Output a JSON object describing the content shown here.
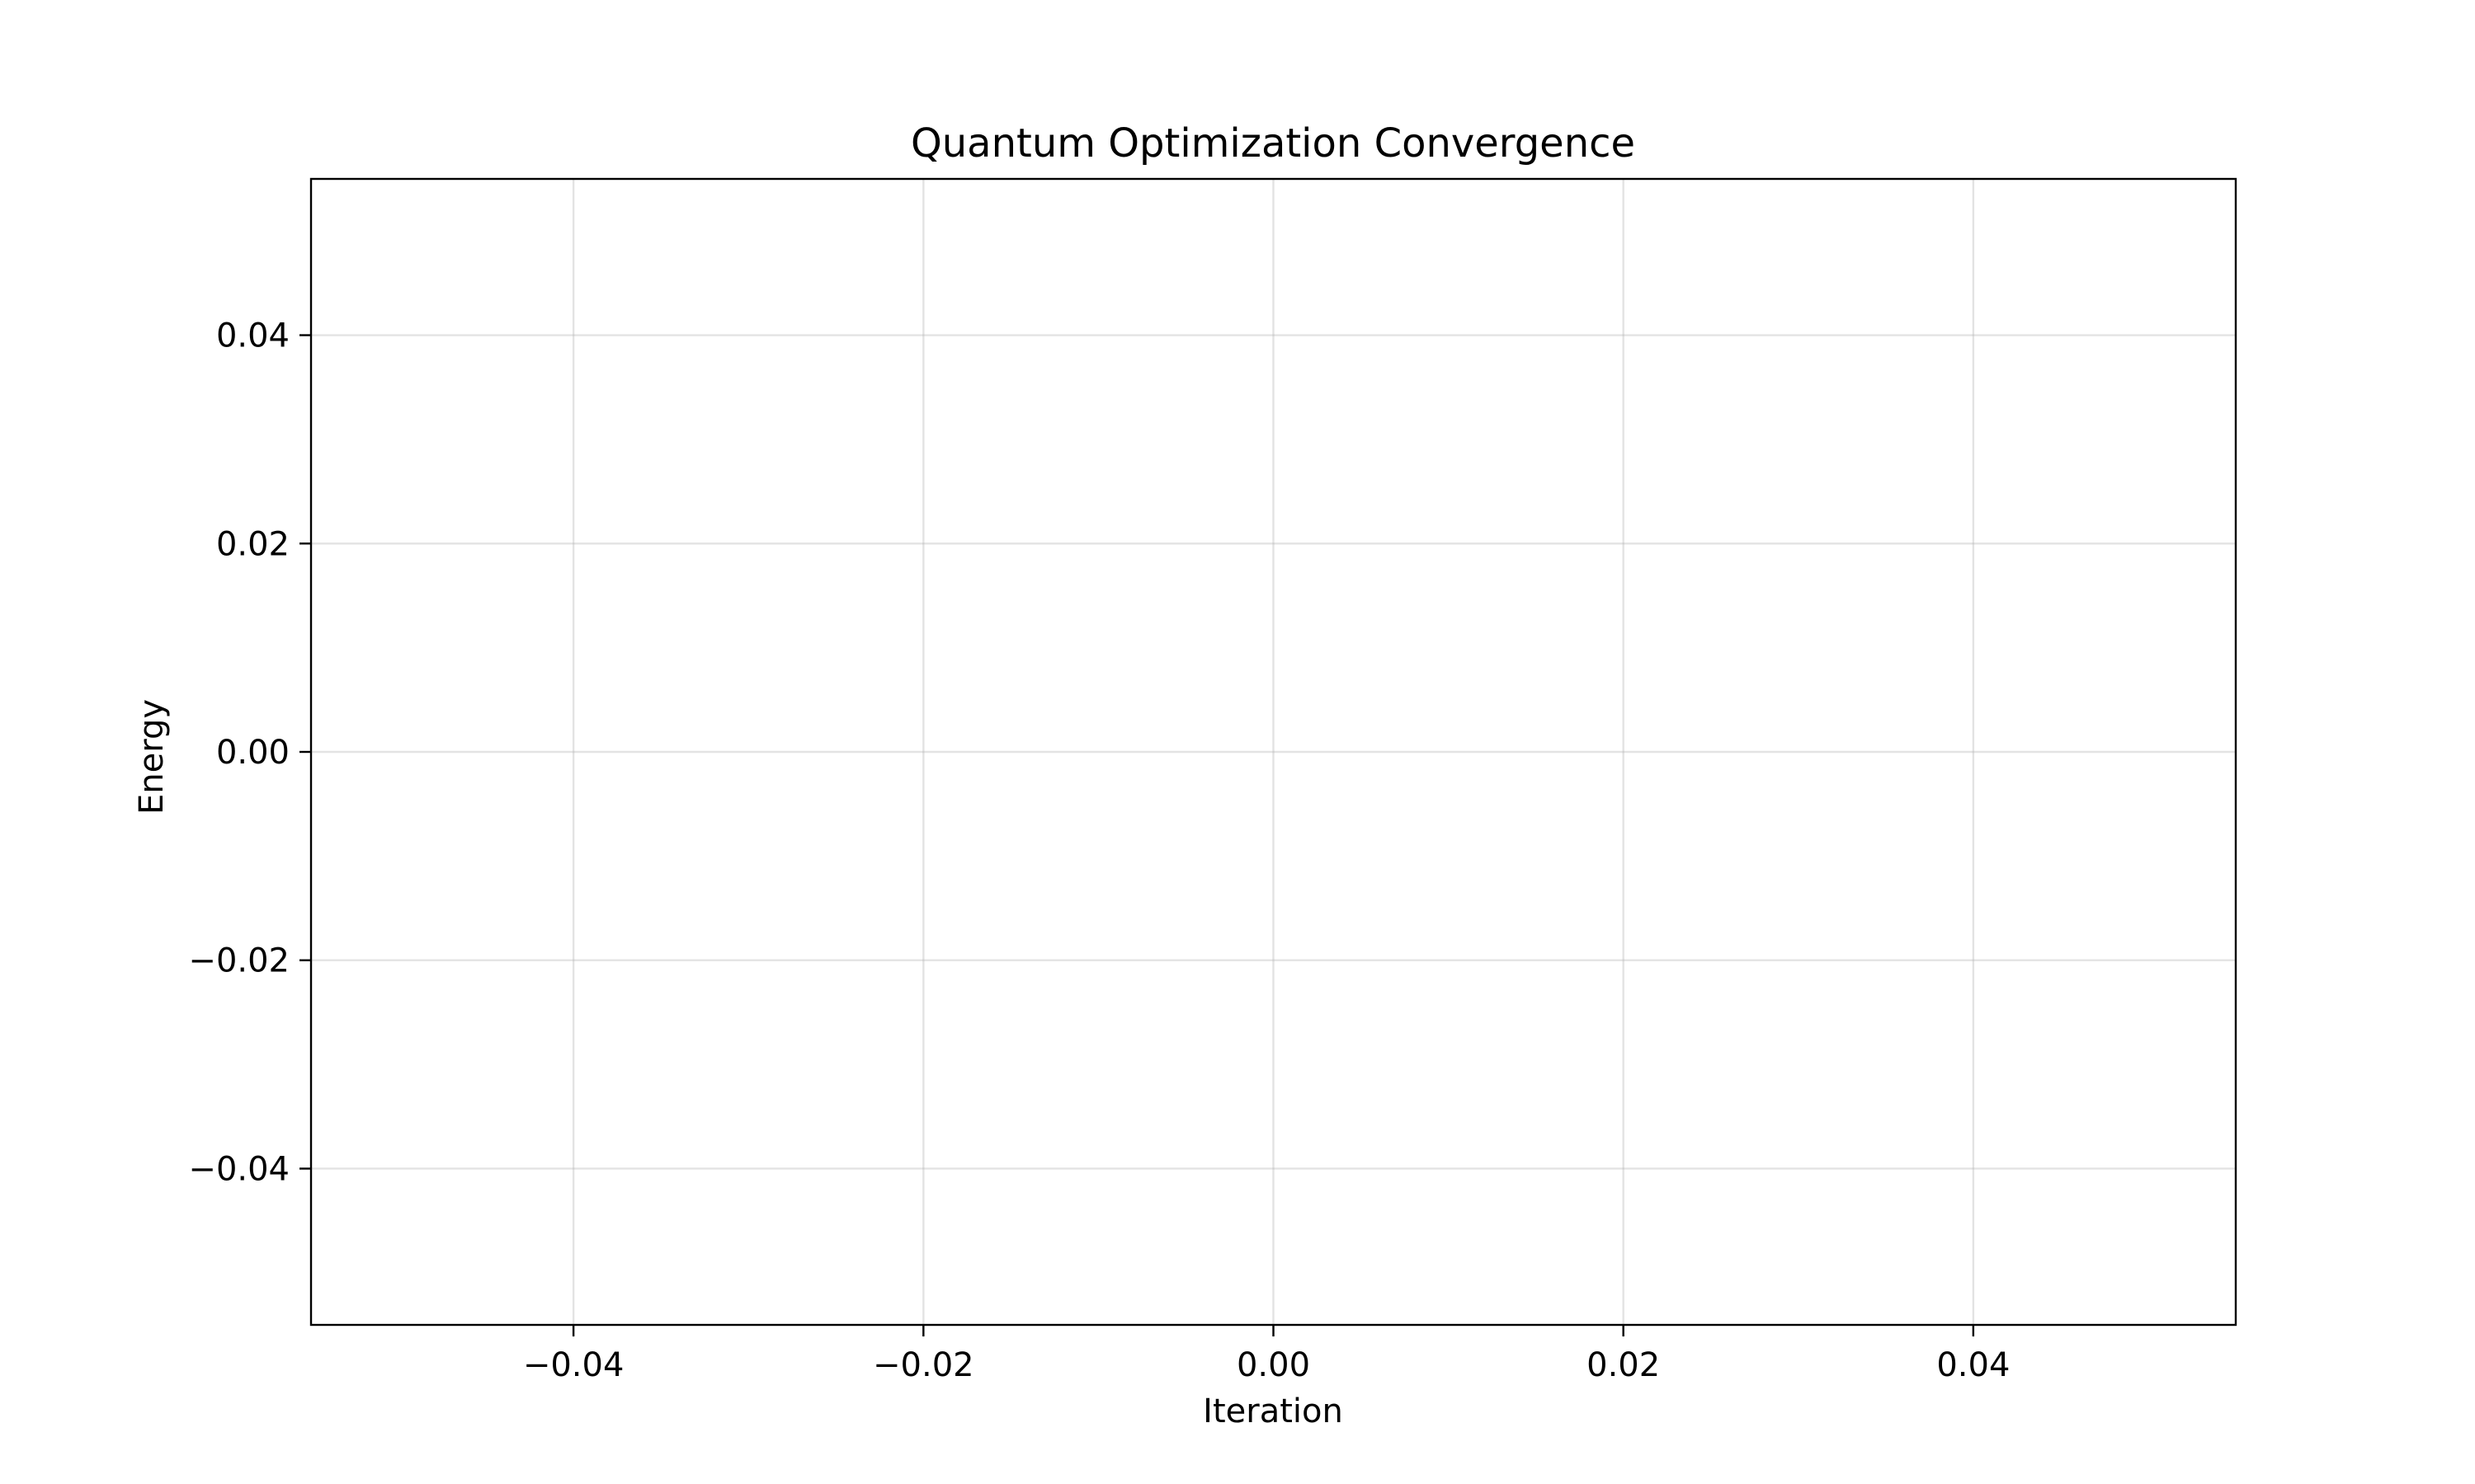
{
  "chart_data": {
    "type": "line",
    "title": "Quantum Optimization Convergence",
    "xlabel": "Iteration",
    "ylabel": "Energy",
    "xlim": [
      -0.055,
      0.055
    ],
    "ylim": [
      -0.055,
      0.055
    ],
    "x_ticks": [
      -0.04,
      -0.02,
      0.0,
      0.02,
      0.04
    ],
    "x_tick_labels": [
      "−0.04",
      "−0.02",
      "0.00",
      "0.02",
      "0.04"
    ],
    "y_ticks": [
      -0.04,
      -0.02,
      0.0,
      0.02,
      0.04
    ],
    "y_tick_labels": [
      "−0.04",
      "−0.02",
      "0.00",
      "0.02",
      "0.04"
    ],
    "grid": true,
    "series": [
      {
        "x": [],
        "y": []
      }
    ]
  }
}
